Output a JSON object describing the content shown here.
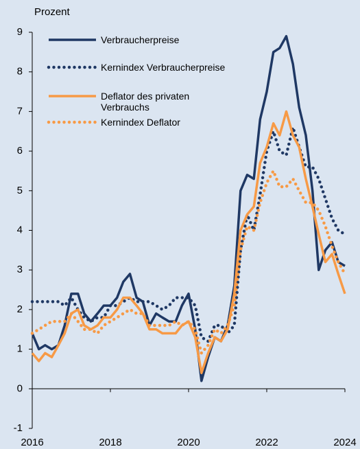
{
  "chart_data": {
    "type": "line",
    "y_label": "Prozent",
    "x": [
      2016,
      2016.17,
      2016.33,
      2016.5,
      2016.67,
      2016.83,
      2017,
      2017.17,
      2017.33,
      2017.5,
      2017.67,
      2017.83,
      2018,
      2018.17,
      2018.33,
      2018.5,
      2018.67,
      2018.83,
      2019,
      2019.17,
      2019.33,
      2019.5,
      2019.67,
      2019.83,
      2020,
      2020.17,
      2020.33,
      2020.5,
      2020.67,
      2020.83,
      2021,
      2021.17,
      2021.33,
      2021.5,
      2021.67,
      2021.83,
      2022,
      2022.17,
      2022.33,
      2022.5,
      2022.67,
      2022.83,
      2023,
      2023.17,
      2023.33,
      2023.5,
      2023.67,
      2023.83,
      2024
    ],
    "series": [
      {
        "name": "Verbraucherpreise",
        "color": "#1f3864",
        "style": "solid",
        "values": [
          1.4,
          1.0,
          1.1,
          1.0,
          1.1,
          1.6,
          2.4,
          2.4,
          1.9,
          1.7,
          1.9,
          2.1,
          2.1,
          2.3,
          2.7,
          2.9,
          2.3,
          2.2,
          1.6,
          1.9,
          1.8,
          1.7,
          1.7,
          2.1,
          2.4,
          1.5,
          0.2,
          0.8,
          1.3,
          1.2,
          1.6,
          2.6,
          5.0,
          5.4,
          5.3,
          6.8,
          7.5,
          8.5,
          8.6,
          8.9,
          8.2,
          7.1,
          6.4,
          5.0,
          3.0,
          3.5,
          3.7,
          3.2,
          3.1
        ]
      },
      {
        "name": "Kernindex Verbraucherpreise",
        "color": "#1f3864",
        "style": "dotted",
        "values": [
          2.2,
          2.2,
          2.2,
          2.2,
          2.2,
          2.1,
          2.3,
          2.0,
          1.8,
          1.7,
          1.8,
          1.8,
          2.1,
          2.1,
          2.2,
          2.3,
          2.2,
          2.2,
          2.2,
          2.1,
          2.0,
          2.1,
          2.3,
          2.3,
          2.3,
          2.1,
          1.3,
          1.2,
          1.6,
          1.6,
          1.4,
          1.6,
          3.5,
          4.4,
          4.0,
          4.9,
          6.0,
          6.5,
          6.0,
          5.9,
          6.6,
          6.1,
          5.6,
          5.6,
          5.3,
          4.8,
          4.3,
          4.0,
          3.9
        ]
      },
      {
        "name": "Deflator des privaten Verbrauchs",
        "color": "#f79a46",
        "style": "solid",
        "values": [
          0.9,
          0.7,
          0.9,
          0.8,
          1.1,
          1.4,
          1.9,
          2.0,
          1.6,
          1.5,
          1.6,
          1.8,
          1.8,
          2.0,
          2.3,
          2.3,
          2.1,
          1.9,
          1.5,
          1.5,
          1.4,
          1.4,
          1.4,
          1.6,
          1.7,
          1.3,
          0.4,
          0.9,
          1.3,
          1.2,
          1.5,
          2.4,
          4.0,
          4.4,
          4.6,
          5.7,
          6.1,
          6.7,
          6.4,
          7.0,
          6.4,
          6.1,
          5.3,
          4.6,
          3.9,
          3.2,
          3.4,
          2.9,
          2.4
        ]
      },
      {
        "name": "Kernindex Deflator",
        "color": "#f79a46",
        "style": "dotted",
        "values": [
          1.4,
          1.5,
          1.6,
          1.7,
          1.7,
          1.7,
          1.9,
          1.7,
          1.5,
          1.5,
          1.4,
          1.6,
          1.7,
          1.8,
          1.9,
          2.0,
          1.9,
          1.9,
          1.6,
          1.6,
          1.6,
          1.6,
          1.7,
          1.6,
          1.7,
          1.5,
          0.9,
          1.1,
          1.5,
          1.4,
          1.6,
          2.1,
          3.5,
          4.1,
          4.0,
          4.7,
          5.2,
          5.5,
          5.1,
          5.1,
          5.3,
          5.0,
          4.7,
          4.7,
          4.5,
          4.1,
          3.6,
          3.2,
          2.9
        ]
      }
    ],
    "xlim": [
      2016,
      2024
    ],
    "xticks": [
      2016,
      2018,
      2020,
      2022,
      2024
    ],
    "ylim": [
      -1,
      9
    ],
    "yticks": [
      -1,
      0,
      1,
      2,
      3,
      4,
      5,
      6,
      7,
      8,
      9
    ]
  }
}
